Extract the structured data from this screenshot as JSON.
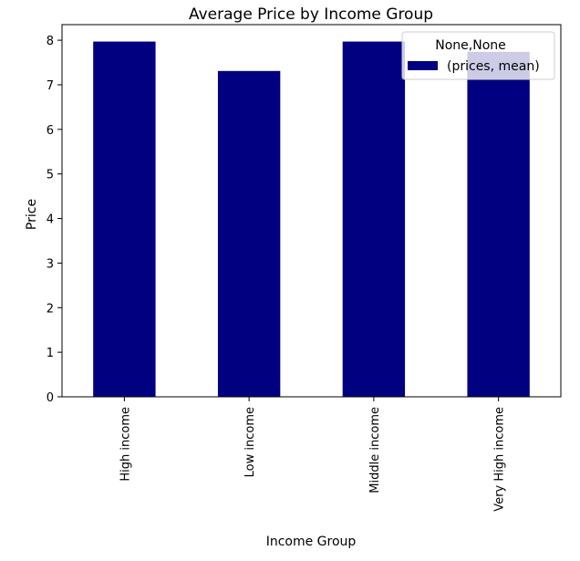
{
  "chart_data": {
    "type": "bar",
    "title": "Average Price by Income Group",
    "xlabel": "Income Group",
    "ylabel": "Price",
    "categories": [
      "High income",
      "Low income",
      "Middle income",
      "Very High income"
    ],
    "series": [
      {
        "name": "(prices, mean)",
        "values": [
          7.97,
          7.31,
          7.97,
          7.74
        ],
        "color": "#000080"
      }
    ],
    "ylim": [
      0,
      8.35
    ],
    "yticks": [
      0,
      1,
      2,
      3,
      4,
      5,
      6,
      7,
      8
    ],
    "legend": {
      "title": "None,None",
      "placement": "top-right"
    },
    "grid": false
  }
}
